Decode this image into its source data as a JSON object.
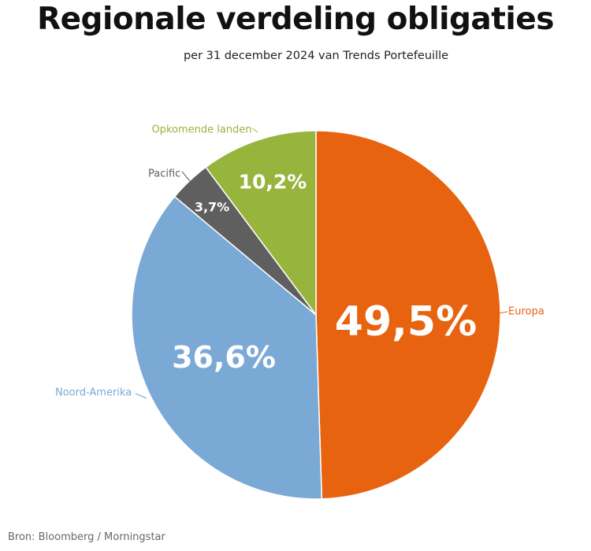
{
  "header": {
    "title": "Regionale verdeling obligaties",
    "subtitle": "per 31 december 2024 van Trends Portefeuille"
  },
  "footer": {
    "source": "Bron: Bloomberg / Morningstar"
  },
  "chart_data": {
    "type": "pie",
    "title": "Regionale verdeling obligaties",
    "subtitle": "per 31 december 2024 van Trends Portefeuille",
    "categories": [
      "Europa",
      "Noord-Amerika",
      "Pacific",
      "Opkomende landen"
    ],
    "values": [
      49.5,
      36.6,
      3.7,
      10.2
    ],
    "value_labels": [
      "49,5%",
      "36,6%",
      "3,7%",
      "10,2%"
    ],
    "colors": [
      "#E8630F",
      "#7BA9D6",
      "#5F5F5F",
      "#97B53C"
    ],
    "start_angle": "12 o'clock",
    "direction": "clockwise",
    "labels": "outside with leader lines"
  }
}
